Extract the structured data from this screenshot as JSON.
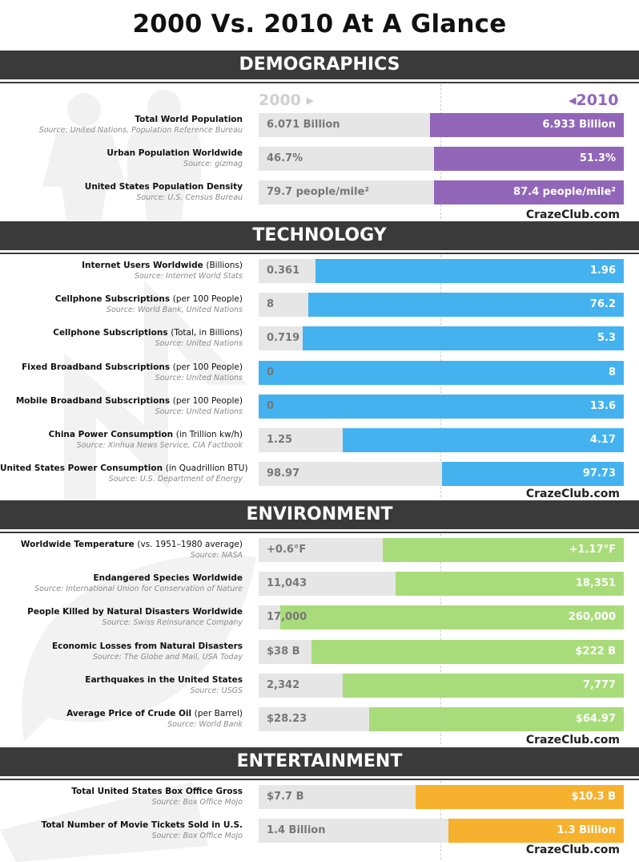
{
  "title": "2000 Vs. 2010 At A Glance",
  "legend": {
    "year_2000": "2000",
    "year_2010": "2010"
  },
  "credit": "CrazeClub.com",
  "colors": {
    "band": "#3a3a3a",
    "track": "#e6e6e6",
    "demographics": "#9166b8",
    "technology": "#45b2f0",
    "environment": "#a8dc7a",
    "entertainment": "#f6b12f"
  },
  "chart_data": [
    {
      "type": "bar",
      "title": "DEMOGRAPHICS",
      "series": [
        {
          "name": "2000"
        },
        {
          "name": "2010"
        }
      ],
      "rows": [
        {
          "label": "Total World Population",
          "unit": "",
          "source": "Source: United Nations, Population Reference Bureau",
          "v2000": "6.071 Billion",
          "v2010": "6.933 Billion",
          "ratio": 0.53
        },
        {
          "label": "Urban Population Worldwide",
          "unit": "",
          "source": "Source: gizmag",
          "v2000": "46.7%",
          "v2010": "51.3%",
          "ratio": 0.52
        },
        {
          "label": "United States Population Density",
          "unit": "",
          "source": "Source: U.S. Census Bureau",
          "v2000": "79.7 people/mile²",
          "v2010": "87.4 people/mile²",
          "ratio": 0.52
        }
      ]
    },
    {
      "type": "bar",
      "title": "TECHNOLOGY",
      "series": [
        {
          "name": "2000"
        },
        {
          "name": "2010"
        }
      ],
      "rows": [
        {
          "label": "Internet Users Worldwide",
          "unit": "(Billions)",
          "source": "Source: Internet World Stats",
          "v2000": "0.361",
          "v2010": "1.96",
          "ratio": 0.845
        },
        {
          "label": "Cellphone Subscriptions",
          "unit": "(per 100 People)",
          "source": "Source: World Bank, United Nations",
          "v2000": "8",
          "v2010": "76.2",
          "ratio": 0.865
        },
        {
          "label": "Cellphone Subscriptions",
          "unit": "(Total, in Billions)",
          "source": "Source: United Nations",
          "v2000": "0.719",
          "v2010": "5.3",
          "ratio": 0.88
        },
        {
          "label": "Fixed Broadband Subscriptions",
          "unit": "(per 100 People)",
          "source": "Source: United Nations",
          "v2000": "0",
          "v2010": "8",
          "ratio": 1.0
        },
        {
          "label": "Mobile Broadband Subscriptions",
          "unit": "(per 100 People)",
          "source": "Source: United Nations",
          "v2000": "0",
          "v2010": "13.6",
          "ratio": 1.0
        },
        {
          "label": "China Power Consumption",
          "unit": "(in Trillion kw/h)",
          "source": "Source: Xinhua News Service, CIA Factbook",
          "v2000": "1.25",
          "v2010": "4.17",
          "ratio": 0.77
        },
        {
          "label": "United States Power Consumption",
          "unit": "(in Quadrillion BTU)",
          "source": "Source: U.S. Department of Energy",
          "v2000": "98.97",
          "v2010": "97.73",
          "ratio": 0.498
        }
      ]
    },
    {
      "type": "bar",
      "title": "ENVIRONMENT",
      "series": [
        {
          "name": "2000"
        },
        {
          "name": "2010"
        }
      ],
      "rows": [
        {
          "label": "Worldwide Temperature",
          "unit": "(vs. 1951–1980 average)",
          "source": "Source: NASA",
          "v2000": "+0.6°F",
          "v2010": "+1.17°F",
          "ratio": 0.66
        },
        {
          "label": "Endangered Species Worldwide",
          "unit": "",
          "source": "Source: International Union for Conservation of Nature",
          "v2000": "11,043",
          "v2010": "18,351",
          "ratio": 0.625
        },
        {
          "label": "People Killed by Natural Disasters Worldwide",
          "unit": "",
          "source": "Source: Swiss Reinsurance Company",
          "v2000": "17,000",
          "v2010": "260,000",
          "ratio": 0.94
        },
        {
          "label": "Economic Losses from Natural Disasters",
          "unit": "",
          "source": "Source: The Globe and Mail, USA Today",
          "v2000": "$38 B",
          "v2010": "$222 B",
          "ratio": 0.855
        },
        {
          "label": "Earthquakes in the United States",
          "unit": "",
          "source": "Source: USGS",
          "v2000": "2,342",
          "v2010": "7,777",
          "ratio": 0.77
        },
        {
          "label": "Average Price of Crude Oil",
          "unit": "(per Barrel)",
          "source": "Source: World Bank",
          "v2000": "$28.23",
          "v2010": "$64.97",
          "ratio": 0.697
        }
      ]
    },
    {
      "type": "bar",
      "title": "ENTERTAINMENT",
      "series": [
        {
          "name": "2000"
        },
        {
          "name": "2010"
        }
      ],
      "rows": [
        {
          "label": "Total United States Box Office Gross",
          "unit": "",
          "source": "Source: Box Office Mojo",
          "v2000": "$7.7 B",
          "v2010": "$10.3 B",
          "ratio": 0.57
        },
        {
          "label": "Total Number of Movie Tickets Sold in U.S.",
          "unit": "",
          "source": "Source: Box Office Mojo",
          "v2000": "1.4 Billion",
          "v2010": "1.3 Billion",
          "ratio": 0.48
        }
      ]
    }
  ]
}
